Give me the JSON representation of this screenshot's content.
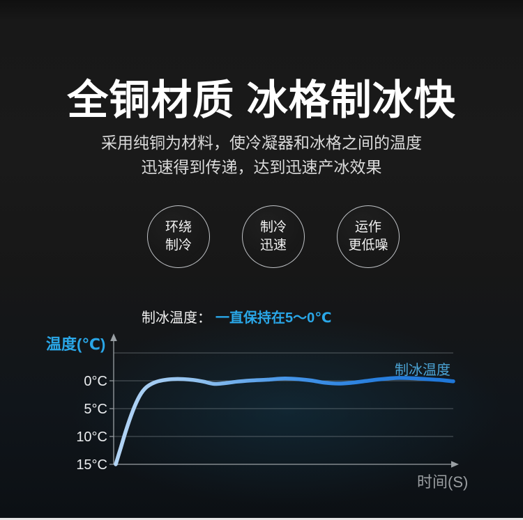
{
  "page": {
    "background_color": "#171717",
    "accent_blue": "#2aa7e8"
  },
  "hero": {
    "title": "全铜材质 冰格制冰快",
    "subtitle_line1": "采用纯铜为材料，使冷凝器和冰格之间的温度",
    "subtitle_line2": "迅速得到传递，达到迅速产冰效果"
  },
  "badges": [
    {
      "lines": [
        "环绕",
        "制冷"
      ]
    },
    {
      "lines": [
        "制冷",
        "迅速"
      ]
    },
    {
      "lines": [
        "运作",
        "更低噪"
      ]
    }
  ],
  "caption": {
    "label": "制冰温度：",
    "value": "一直保持在5～0℃"
  },
  "chart_data": {
    "type": "line",
    "title": "",
    "xlabel": "时间(S)",
    "ylabel": "温度(℃)",
    "legend": "制冰温度",
    "legend_position": "top-right",
    "grid": true,
    "y_axis_inverted": true,
    "ylim": [
      -5,
      15
    ],
    "xlim": [
      0,
      100
    ],
    "x_axis_tick_labels": [],
    "yticks": [
      {
        "value": 0,
        "label": "0°C"
      },
      {
        "value": 5,
        "label": "5°C"
      },
      {
        "value": 10,
        "label": "10°C"
      },
      {
        "value": 15,
        "label": "15°C"
      }
    ],
    "gridline_values": [
      -5,
      0,
      5,
      10
    ],
    "axis_color": "#9aa0a4",
    "grid_color": "#8b9499",
    "tick_label_color": "#eceef0",
    "series": [
      {
        "name": "制冰温度",
        "color_gradient": [
          "#b3d4f5",
          "#8fc0ee",
          "#4796e8",
          "#2a80de",
          "#1f77d8"
        ],
        "points": [
          [
            0,
            15
          ],
          [
            1.5,
            12
          ],
          [
            3,
            9
          ],
          [
            5,
            5.5
          ],
          [
            7,
            2.8
          ],
          [
            9,
            1.2
          ],
          [
            11.5,
            0.3
          ],
          [
            14,
            -0.1
          ],
          [
            17,
            -0.3
          ],
          [
            20,
            -0.3
          ],
          [
            23,
            -0.15
          ],
          [
            26,
            0.15
          ],
          [
            29,
            0.55
          ],
          [
            32,
            0.45
          ],
          [
            36,
            0.15
          ],
          [
            40,
            -0.05
          ],
          [
            45,
            -0.2
          ],
          [
            50,
            -0.4
          ],
          [
            54,
            -0.3
          ],
          [
            58,
            -0.05
          ],
          [
            62,
            0.35
          ],
          [
            66,
            0.5
          ],
          [
            70,
            0.35
          ],
          [
            74,
            0.05
          ],
          [
            78,
            -0.25
          ],
          [
            83,
            -0.5
          ],
          [
            88,
            -0.45
          ],
          [
            92,
            -0.3
          ],
          [
            96,
            -0.15
          ],
          [
            100,
            0.1
          ]
        ]
      }
    ]
  },
  "footer": {
    "next_section_strip_color": "#e7e7e7"
  }
}
